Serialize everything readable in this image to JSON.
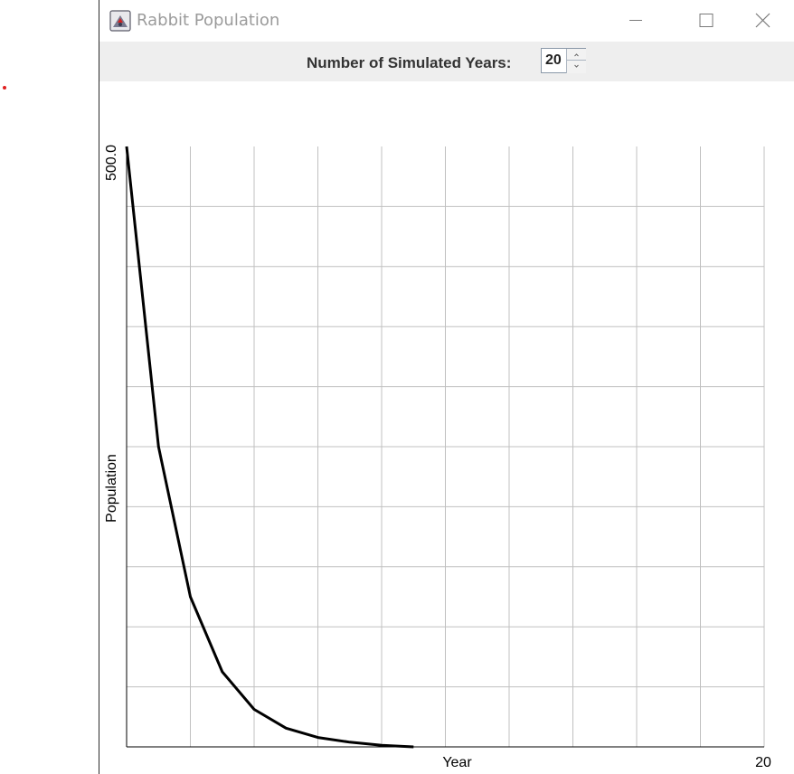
{
  "window": {
    "title": "Rabbit Population",
    "icon": "java-app-icon",
    "controls": [
      "minimize-icon",
      "maximize-icon",
      "close-icon"
    ]
  },
  "toolbar": {
    "years_label": "Number of Simulated Years:",
    "years_value": "20"
  },
  "colors": {
    "title_text": "#9b9b9b",
    "toolbar_bg": "#eeeeee",
    "grid": "#c0c0c0",
    "line": "#000000",
    "stray_dot": "#e02020"
  },
  "chart_data": {
    "type": "line",
    "title": "",
    "xlabel": "Year",
    "ylabel": "Population",
    "y_tick_label": "500.0",
    "x_tick_label": "20",
    "xlim": [
      0,
      20
    ],
    "ylim": [
      0,
      500
    ],
    "grid": true,
    "legend": "none",
    "x_grid_step": 2,
    "y_grid_step": 50,
    "series": [
      {
        "x": [
          0,
          1,
          2,
          3,
          4,
          5,
          6,
          7,
          8,
          9
        ],
        "y": [
          500,
          250,
          125,
          62.5,
          31.25,
          15.6,
          7.8,
          3.9,
          1.3,
          0
        ]
      }
    ]
  }
}
